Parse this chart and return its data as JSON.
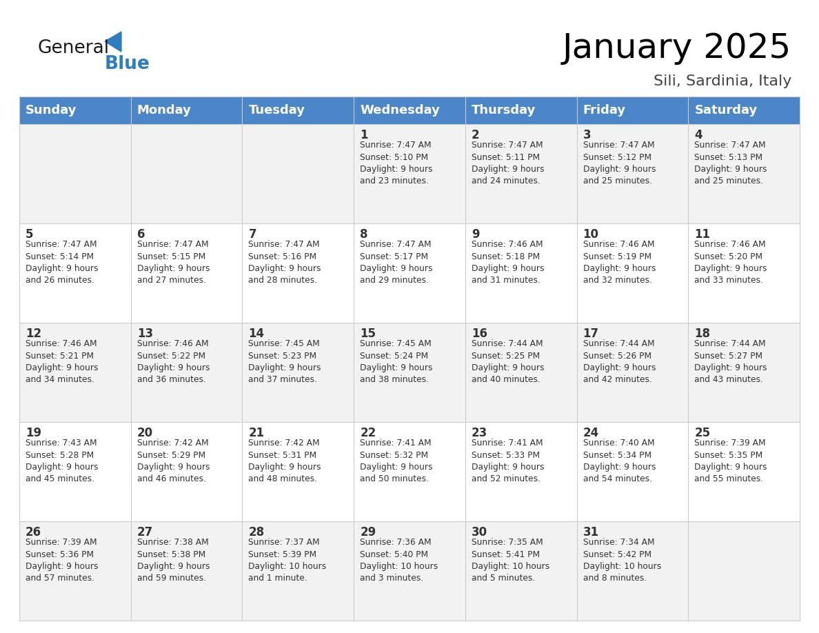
{
  "title": "January 2025",
  "subtitle": "Sili, Sardinia, Italy",
  "days_of_week": [
    "Sunday",
    "Monday",
    "Tuesday",
    "Wednesday",
    "Thursday",
    "Friday",
    "Saturday"
  ],
  "header_bg": "#4A86C8",
  "header_text": "#FFFFFF",
  "cell_bg_even": "#F2F2F2",
  "cell_bg_odd": "#FFFFFF",
  "cell_border": "#CCCCCC",
  "title_color": "#000000",
  "subtitle_color": "#444444",
  "day_number_color": "#333333",
  "cell_text_color": "#333333",
  "logo_general_color": "#1a1a1a",
  "logo_blue_color": "#2E7DC0",
  "weeks": [
    [
      {
        "day": null,
        "text": ""
      },
      {
        "day": null,
        "text": ""
      },
      {
        "day": null,
        "text": ""
      },
      {
        "day": 1,
        "text": "Sunrise: 7:47 AM\nSunset: 5:10 PM\nDaylight: 9 hours\nand 23 minutes."
      },
      {
        "day": 2,
        "text": "Sunrise: 7:47 AM\nSunset: 5:11 PM\nDaylight: 9 hours\nand 24 minutes."
      },
      {
        "day": 3,
        "text": "Sunrise: 7:47 AM\nSunset: 5:12 PM\nDaylight: 9 hours\nand 25 minutes."
      },
      {
        "day": 4,
        "text": "Sunrise: 7:47 AM\nSunset: 5:13 PM\nDaylight: 9 hours\nand 25 minutes."
      }
    ],
    [
      {
        "day": 5,
        "text": "Sunrise: 7:47 AM\nSunset: 5:14 PM\nDaylight: 9 hours\nand 26 minutes."
      },
      {
        "day": 6,
        "text": "Sunrise: 7:47 AM\nSunset: 5:15 PM\nDaylight: 9 hours\nand 27 minutes."
      },
      {
        "day": 7,
        "text": "Sunrise: 7:47 AM\nSunset: 5:16 PM\nDaylight: 9 hours\nand 28 minutes."
      },
      {
        "day": 8,
        "text": "Sunrise: 7:47 AM\nSunset: 5:17 PM\nDaylight: 9 hours\nand 29 minutes."
      },
      {
        "day": 9,
        "text": "Sunrise: 7:46 AM\nSunset: 5:18 PM\nDaylight: 9 hours\nand 31 minutes."
      },
      {
        "day": 10,
        "text": "Sunrise: 7:46 AM\nSunset: 5:19 PM\nDaylight: 9 hours\nand 32 minutes."
      },
      {
        "day": 11,
        "text": "Sunrise: 7:46 AM\nSunset: 5:20 PM\nDaylight: 9 hours\nand 33 minutes."
      }
    ],
    [
      {
        "day": 12,
        "text": "Sunrise: 7:46 AM\nSunset: 5:21 PM\nDaylight: 9 hours\nand 34 minutes."
      },
      {
        "day": 13,
        "text": "Sunrise: 7:46 AM\nSunset: 5:22 PM\nDaylight: 9 hours\nand 36 minutes."
      },
      {
        "day": 14,
        "text": "Sunrise: 7:45 AM\nSunset: 5:23 PM\nDaylight: 9 hours\nand 37 minutes."
      },
      {
        "day": 15,
        "text": "Sunrise: 7:45 AM\nSunset: 5:24 PM\nDaylight: 9 hours\nand 38 minutes."
      },
      {
        "day": 16,
        "text": "Sunrise: 7:44 AM\nSunset: 5:25 PM\nDaylight: 9 hours\nand 40 minutes."
      },
      {
        "day": 17,
        "text": "Sunrise: 7:44 AM\nSunset: 5:26 PM\nDaylight: 9 hours\nand 42 minutes."
      },
      {
        "day": 18,
        "text": "Sunrise: 7:44 AM\nSunset: 5:27 PM\nDaylight: 9 hours\nand 43 minutes."
      }
    ],
    [
      {
        "day": 19,
        "text": "Sunrise: 7:43 AM\nSunset: 5:28 PM\nDaylight: 9 hours\nand 45 minutes."
      },
      {
        "day": 20,
        "text": "Sunrise: 7:42 AM\nSunset: 5:29 PM\nDaylight: 9 hours\nand 46 minutes."
      },
      {
        "day": 21,
        "text": "Sunrise: 7:42 AM\nSunset: 5:31 PM\nDaylight: 9 hours\nand 48 minutes."
      },
      {
        "day": 22,
        "text": "Sunrise: 7:41 AM\nSunset: 5:32 PM\nDaylight: 9 hours\nand 50 minutes."
      },
      {
        "day": 23,
        "text": "Sunrise: 7:41 AM\nSunset: 5:33 PM\nDaylight: 9 hours\nand 52 minutes."
      },
      {
        "day": 24,
        "text": "Sunrise: 7:40 AM\nSunset: 5:34 PM\nDaylight: 9 hours\nand 54 minutes."
      },
      {
        "day": 25,
        "text": "Sunrise: 7:39 AM\nSunset: 5:35 PM\nDaylight: 9 hours\nand 55 minutes."
      }
    ],
    [
      {
        "day": 26,
        "text": "Sunrise: 7:39 AM\nSunset: 5:36 PM\nDaylight: 9 hours\nand 57 minutes."
      },
      {
        "day": 27,
        "text": "Sunrise: 7:38 AM\nSunset: 5:38 PM\nDaylight: 9 hours\nand 59 minutes."
      },
      {
        "day": 28,
        "text": "Sunrise: 7:37 AM\nSunset: 5:39 PM\nDaylight: 10 hours\nand 1 minute."
      },
      {
        "day": 29,
        "text": "Sunrise: 7:36 AM\nSunset: 5:40 PM\nDaylight: 10 hours\nand 3 minutes."
      },
      {
        "day": 30,
        "text": "Sunrise: 7:35 AM\nSunset: 5:41 PM\nDaylight: 10 hours\nand 5 minutes."
      },
      {
        "day": 31,
        "text": "Sunrise: 7:34 AM\nSunset: 5:42 PM\nDaylight: 10 hours\nand 8 minutes."
      },
      {
        "day": null,
        "text": ""
      }
    ]
  ]
}
